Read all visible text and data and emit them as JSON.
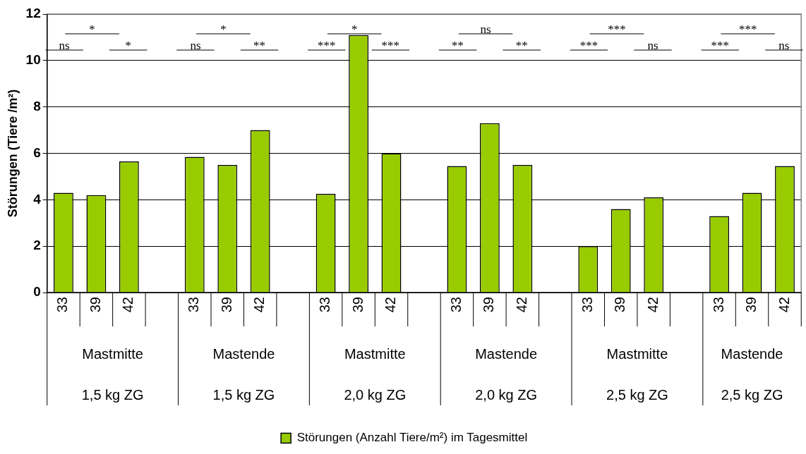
{
  "chart_data": {
    "type": "bar",
    "ylabel": "Störungen (Tiere /m²)",
    "categories": [
      "33",
      "39",
      "42",
      null,
      "33",
      "39",
      "42",
      null,
      "33",
      "39",
      "42",
      null,
      "33",
      "39",
      "42",
      null,
      "33",
      "39",
      "42",
      null,
      "33",
      "39",
      "42"
    ],
    "series": [
      {
        "name": "Störungen (Anzahl Tiere/m²) im Tagesmittel",
        "color": "#99cc00",
        "values": [
          4.3,
          4.2,
          5.65,
          null,
          5.85,
          5.5,
          7.0,
          null,
          4.25,
          11.1,
          6.0,
          null,
          5.45,
          7.3,
          5.5,
          null,
          2.0,
          3.6,
          4.1,
          null,
          3.3,
          4.3,
          5.45
        ]
      }
    ],
    "ylim": [
      0,
      12
    ],
    "yticks": [
      0,
      2,
      4,
      6,
      8,
      10,
      12
    ],
    "grid": "y",
    "legend": "bottom",
    "annotations": [
      "ns",
      "*",
      "*",
      "ns",
      "**",
      "*",
      "***",
      "***",
      "*",
      "**",
      "**",
      "ns",
      "***",
      "ns",
      "***",
      "***",
      "ns",
      "***",
      "Mastmitte",
      "1,5 kg ZG",
      "Mastende",
      "1,5 kg ZG",
      "Mastmitte",
      "2,0 kg ZG",
      "Mastende",
      "2,0 kg ZG",
      "Mastmitte",
      "2,5 kg ZG",
      "Mastende",
      "2,5 kg ZG"
    ]
  }
}
